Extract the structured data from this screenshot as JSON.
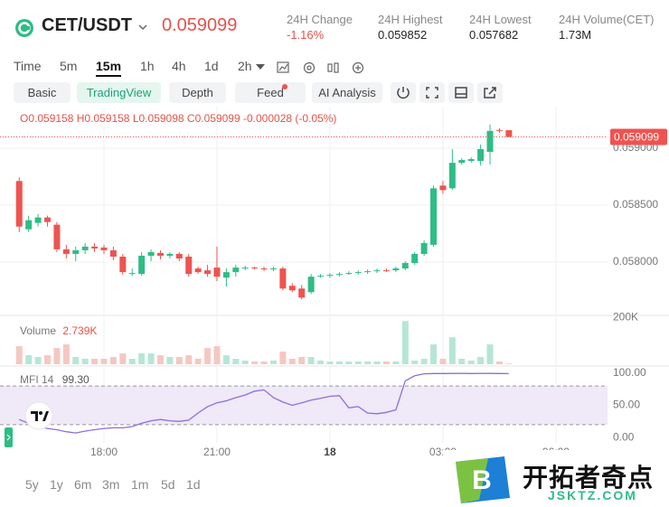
{
  "header": {
    "pair": "CET/USDT",
    "price": "0.059099",
    "stats": [
      {
        "label": "24H Change",
        "value": "-1.16%"
      },
      {
        "label": "24H Highest",
        "value": "0.059852"
      },
      {
        "label": "24H Lowest",
        "value": "0.057682"
      },
      {
        "label": "24H Volume(CET)",
        "value": "1.73M"
      }
    ]
  },
  "intervals": [
    "Time",
    "5m",
    "15m",
    "1h",
    "4h",
    "1d",
    "2h"
  ],
  "tabs": [
    "Basic",
    "TradingView",
    "Depth",
    "Feed",
    "AI Analysis"
  ],
  "ranges": [
    "5y",
    "1y",
    "6m",
    "3m",
    "1m",
    "5d",
    "1d"
  ],
  "watermark": {
    "logo": "B",
    "name": "开拓者奇点",
    "site": "JSKTZ.COM"
  },
  "chart_data": [
    {
      "type": "candlestick",
      "legend_labels": [
        "O",
        "H",
        "L",
        "C"
      ],
      "change": "-0.000028",
      "change_pct": "(-0.05%)",
      "x": [
        15.75,
        16,
        16.25,
        16.5,
        16.75,
        17,
        17.25,
        17.5,
        17.75,
        18,
        18.25,
        18.5,
        18.75,
        19,
        19.25,
        19.5,
        19.75,
        20,
        20.25,
        20.5,
        20.75,
        21,
        21.25,
        21.5,
        21.75,
        22,
        22.25,
        22.5,
        22.75,
        23,
        23.25,
        23.5,
        23.75,
        24,
        24.25,
        24.5,
        24.75,
        25,
        25.25,
        25.5,
        25.75,
        26,
        26.25,
        26.5,
        26.75,
        27,
        27.25,
        27.5,
        27.75,
        28,
        28.25,
        28.5,
        28.75
      ],
      "open": [
        0.058712,
        0.058288,
        0.058344,
        0.058392,
        0.058328,
        0.058112,
        0.058072,
        0.058104,
        0.058136,
        0.058128,
        0.058104,
        0.058048,
        0.057896,
        0.057896,
        0.058056,
        0.05808,
        0.058056,
        0.058072,
        0.058048,
        0.057944,
        0.057928,
        0.057952,
        0.057864,
        0.057912,
        0.057944,
        0.057952,
        0.057944,
        0.057936,
        0.057944,
        0.057792,
        0.057768,
        0.057736,
        0.057872,
        0.05788,
        0.057888,
        0.057896,
        0.057904,
        0.057912,
        0.05792,
        0.057928,
        0.057928,
        0.057944,
        0.057992,
        0.058072,
        0.058152,
        0.058672,
        0.058648,
        0.058872,
        0.058888,
        0.058888,
        0.058968,
        0.05916,
        0.059158
      ],
      "high": [
        0.058744,
        0.058408,
        0.058424,
        0.058408,
        0.058352,
        0.058152,
        0.058136,
        0.058168,
        0.058168,
        0.058152,
        0.058136,
        0.058072,
        0.057944,
        0.058088,
        0.058112,
        0.058104,
        0.058088,
        0.058088,
        0.058072,
        0.05796,
        0.057976,
        0.058136,
        0.057944,
        0.057976,
        0.057968,
        0.05796,
        0.05796,
        0.05796,
        0.05796,
        0.057816,
        0.0578,
        0.057896,
        0.057896,
        0.057904,
        0.057912,
        0.05792,
        0.057928,
        0.057936,
        0.057944,
        0.057944,
        0.05796,
        0.058008,
        0.058088,
        0.058192,
        0.058672,
        0.058712,
        0.058992,
        0.058912,
        0.05892,
        0.059032,
        0.059208,
        0.059176,
        0.059158
      ],
      "low": [
        0.058264,
        0.058264,
        0.058312,
        0.058312,
        0.058088,
        0.058032,
        0.058008,
        0.058072,
        0.058088,
        0.058072,
        0.058016,
        0.057888,
        0.05788,
        0.05788,
        0.058008,
        0.058024,
        0.058032,
        0.058008,
        0.057872,
        0.057896,
        0.057872,
        0.057832,
        0.057784,
        0.057872,
        0.057928,
        0.057936,
        0.05792,
        0.05792,
        0.057752,
        0.057736,
        0.057672,
        0.05772,
        0.057864,
        0.057864,
        0.057872,
        0.057888,
        0.057888,
        0.057896,
        0.057904,
        0.057912,
        0.057912,
        0.057928,
        0.057976,
        0.058056,
        0.058136,
        0.0586,
        0.058632,
        0.058856,
        0.058872,
        0.058848,
        0.058856,
        0.059136,
        0.059098
      ],
      "close": [
        0.058312,
        0.058368,
        0.058392,
        0.058352,
        0.058112,
        0.058072,
        0.058104,
        0.058136,
        0.05812,
        0.058104,
        0.058048,
        0.057912,
        0.057904,
        0.058056,
        0.058088,
        0.058056,
        0.058072,
        0.058032,
        0.057896,
        0.057912,
        0.057896,
        0.057872,
        0.057912,
        0.057952,
        0.057952,
        0.057944,
        0.057936,
        0.057944,
        0.057768,
        0.057752,
        0.057688,
        0.057872,
        0.05788,
        0.057888,
        0.057896,
        0.057904,
        0.057912,
        0.05792,
        0.057928,
        0.05792,
        0.057944,
        0.057992,
        0.058072,
        0.058168,
        0.058648,
        0.058632,
        0.058872,
        0.058896,
        0.058904,
        0.058992,
        0.059152,
        0.059152,
        0.059099
      ],
      "colors": {
        "up": "#2ebd85",
        "down": "#ef5350"
      },
      "xlim": [
        15.24,
        31.37
      ],
      "xticks": [
        {
          "value": 18,
          "label": "18:00"
        },
        {
          "value": 21,
          "label": "21:00"
        },
        {
          "value": 24,
          "label": "18"
        },
        {
          "value": 27,
          "label": "03:00"
        },
        {
          "value": 30,
          "label": "06:00"
        }
      ],
      "ylim": [
        0.05754,
        0.059365
      ],
      "yticks": [
        {
          "value": 0.059,
          "label": "0.059000"
        },
        {
          "value": 0.0585,
          "label": "0.058500"
        },
        {
          "value": 0.058,
          "label": "0.058000"
        }
      ],
      "grid": true
    },
    {
      "type": "bar",
      "title": "Volume",
      "values": [
        77000,
        38500,
        30800,
        38500,
        69300,
        84700,
        30800,
        23100,
        23100,
        23100,
        30800,
        46200,
        23100,
        46200,
        46200,
        38500,
        30800,
        30800,
        38500,
        23100,
        69300,
        77000,
        38500,
        23100,
        15400,
        11550,
        11550,
        15400,
        53900,
        23100,
        30800,
        30800,
        15400,
        11550,
        11550,
        11550,
        11550,
        11550,
        11550,
        11550,
        11550,
        184800,
        15400,
        23100,
        84700,
        23100,
        115500,
        23100,
        15400,
        30800,
        84700,
        11550,
        2739
      ],
      "value_labels": [
        null,
        null,
        null,
        null,
        null,
        null,
        null,
        null,
        null,
        null,
        null,
        null,
        null,
        null,
        null,
        null,
        null,
        null,
        null,
        null,
        null,
        null,
        null,
        null,
        null,
        null,
        null,
        null,
        null,
        null,
        null,
        null,
        null,
        null,
        null,
        null,
        null,
        null,
        null,
        null,
        null,
        null,
        null,
        null,
        null,
        null,
        null,
        null,
        null,
        null,
        null,
        null,
        "2.739K"
      ],
      "colors": {
        "up": "#b5e6d6",
        "down": "#f6c7c1"
      },
      "ylim": [
        0,
        205000
      ],
      "yticks": [
        {
          "value": 200000,
          "label": "200K"
        }
      ]
    },
    {
      "type": "line",
      "title": "MFI 14",
      "values": [
        28,
        22,
        17,
        14,
        12,
        9,
        7,
        10,
        12,
        14,
        15,
        15,
        17,
        22,
        26,
        28,
        26,
        25,
        27,
        38,
        48,
        54,
        57,
        62,
        66,
        72,
        74,
        62,
        55,
        50,
        54,
        58,
        61,
        64,
        65,
        46,
        48,
        38,
        37,
        39,
        43,
        88,
        96,
        99,
        99.5,
        99.5,
        99.6,
        99.6,
        99.5,
        99.6,
        99.6,
        99.5,
        99.3
      ],
      "value_labels": [
        null,
        null,
        null,
        null,
        null,
        null,
        null,
        null,
        null,
        null,
        null,
        null,
        null,
        null,
        null,
        null,
        null,
        null,
        null,
        null,
        null,
        null,
        null,
        null,
        null,
        null,
        null,
        null,
        null,
        null,
        null,
        null,
        null,
        null,
        null,
        null,
        null,
        null,
        null,
        null,
        null,
        null,
        null,
        null,
        null,
        null,
        null,
        null,
        null,
        null,
        null,
        null,
        "99.30"
      ],
      "color": "#8e6fd6",
      "band": [
        20,
        80
      ],
      "band_color": "#efe9f8",
      "ylim": [
        -8.3,
        109.7
      ],
      "yticks": [
        {
          "value": 100,
          "label": "100.00"
        },
        {
          "value": 50,
          "label": "50.00"
        },
        {
          "value": 0,
          "label": "0.00"
        }
      ]
    }
  ]
}
